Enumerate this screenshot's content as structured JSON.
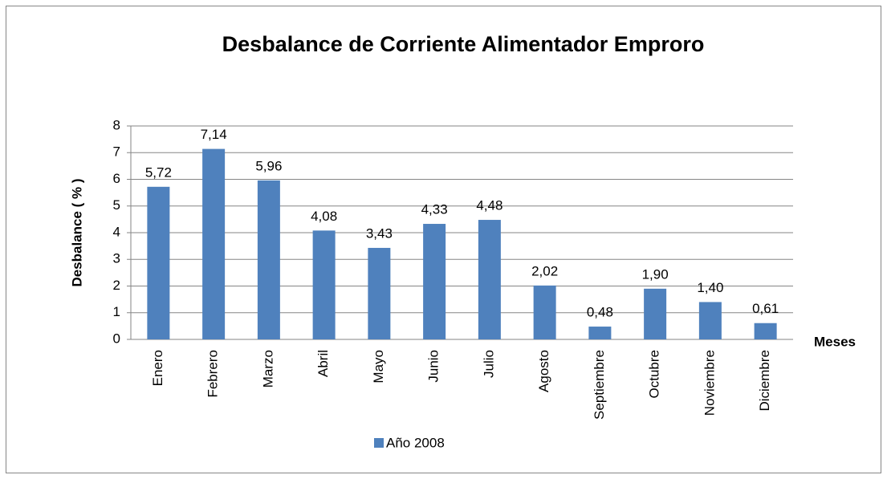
{
  "chart_data": {
    "type": "bar",
    "title": "Desbalance de Corriente Alimentador Emproro",
    "y_label": "Desbalance  ( % )",
    "x_label": "Meses",
    "categories": [
      "Enero",
      "Febrero",
      "Marzo",
      "Abril",
      "Mayo",
      "Junio",
      "Julio",
      "Agosto",
      "Septiembre",
      "Octubre",
      "Noviembre",
      "Diciembre"
    ],
    "series": [
      {
        "name": "Año 2008",
        "color": "#4f81bd",
        "values": [
          5.72,
          7.14,
          5.96,
          4.08,
          3.43,
          4.33,
          4.48,
          2.02,
          0.48,
          1.9,
          1.4,
          0.61
        ],
        "value_labels": [
          "5,72",
          "7,14",
          "5,96",
          "4,08",
          "3,43",
          "4,33",
          "4,48",
          "2,02",
          "0,48",
          "1,90",
          "1,40",
          "0,61"
        ]
      }
    ],
    "ylim": [
      0,
      8
    ],
    "yticks": [
      0,
      1,
      2,
      3,
      4,
      5,
      6,
      7,
      8
    ],
    "grid": true,
    "legend": "bottom"
  }
}
